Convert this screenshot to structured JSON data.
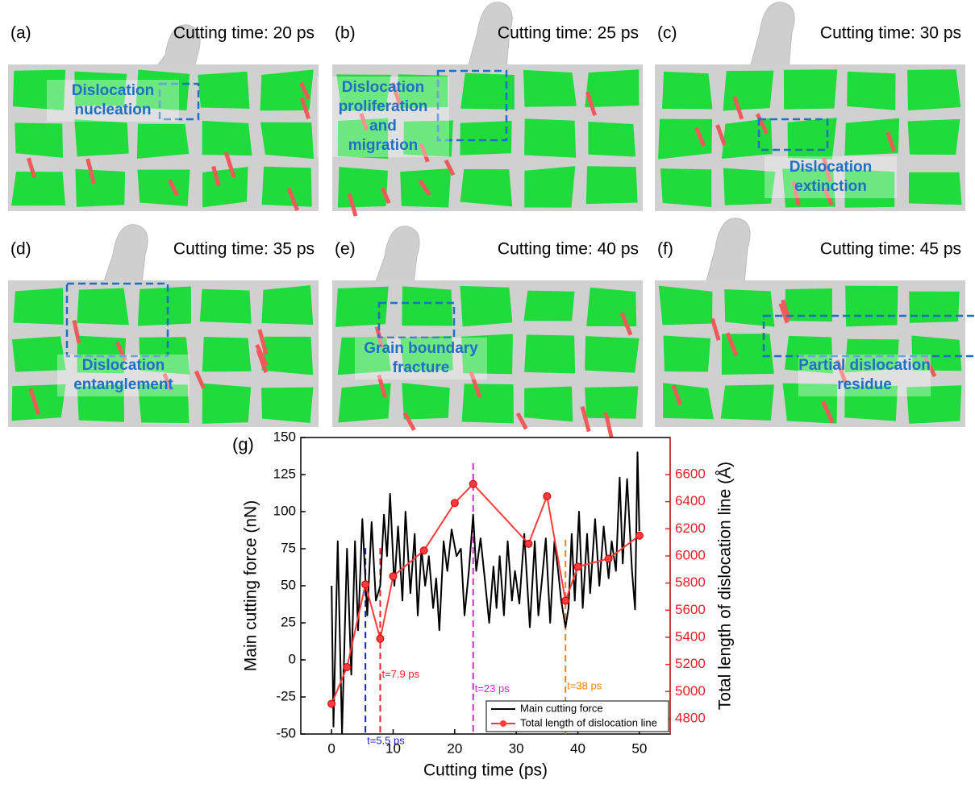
{
  "panels": [
    {
      "label": "(a)",
      "caption": "Cutting time: 20 ps",
      "annotation": [
        "Dislocation",
        "nucleation"
      ]
    },
    {
      "label": "(b)",
      "caption": "Cutting time: 25 ps",
      "annotation": [
        "Dislocation",
        "proliferation",
        "and",
        "migration"
      ]
    },
    {
      "label": "(c)",
      "caption": "Cutting time: 30 ps",
      "annotation": [
        "Dislocation",
        "extinction"
      ]
    },
    {
      "label": "(d)",
      "caption": "Cutting time: 35 ps",
      "annotation": [
        "Dislocation",
        "entanglement"
      ]
    },
    {
      "label": "(e)",
      "caption": "Cutting time: 40 ps",
      "annotation": [
        "Grain boundary",
        "fracture"
      ]
    },
    {
      "label": "(f)",
      "caption": "Cutting time: 45 ps",
      "annotation": [
        "Partial dislocation",
        "residue"
      ]
    }
  ],
  "chart_data": {
    "type": "line",
    "panel_label": "(g)",
    "x_label": "Cutting time (ps)",
    "y_label": "Main cutting force (nN)",
    "y2_label": "Total length of dislocation line (Å)",
    "xlim": [
      -5,
      55
    ],
    "xticks": [
      0,
      10,
      20,
      30,
      40,
      50
    ],
    "ylim": [
      -50,
      150
    ],
    "yticks": [
      -50,
      -25,
      0,
      25,
      50,
      75,
      100,
      125,
      150
    ],
    "y2lim": [
      4687,
      6873
    ],
    "y2ticks": [
      4800,
      5000,
      5200,
      5400,
      5600,
      5800,
      6000,
      6200,
      6400,
      6600
    ],
    "legend": "lower right",
    "series": [
      {
        "name": "Main cutting force",
        "color": "#000000",
        "x": [
          0,
          0.3,
          1,
          1.7,
          2.5,
          3.2,
          3.8,
          4.3,
          5,
          5.8,
          6.5,
          7.2,
          7.9,
          8.5,
          9,
          9.5,
          10.2,
          10.8,
          11.5,
          12,
          12.8,
          13.5,
          14,
          14.6,
          15.2,
          15.8,
          16.5,
          17,
          17.5,
          18.2,
          18.8,
          19.5,
          20.3,
          21,
          21.6,
          22.3,
          23,
          23.5,
          24.2,
          25,
          25.6,
          26.3,
          26.8,
          27.3,
          28,
          28.6,
          29.3,
          29.8,
          30.5,
          31.3,
          32.2,
          33,
          33.6,
          34.2,
          34.8,
          35.5,
          36.2,
          36.8,
          37.3,
          38,
          38.5,
          39,
          39.5,
          40.2,
          40.8,
          41.5,
          42,
          42.8,
          43.5,
          44.2,
          45,
          45.5,
          46.2,
          46.8,
          47.3,
          48,
          48.8,
          49.3,
          49.7,
          50
        ],
        "values": [
          50,
          -45,
          80,
          -50,
          75,
          -10,
          80,
          20,
          95,
          30,
          93,
          40,
          50,
          98,
          70,
          112,
          50,
          90,
          40,
          100,
          45,
          85,
          30,
          75,
          50,
          70,
          35,
          55,
          20,
          80,
          60,
          88,
          70,
          75,
          30,
          60,
          98,
          60,
          82,
          50,
          25,
          63,
          35,
          70,
          30,
          80,
          40,
          60,
          38,
          85,
          22,
          80,
          30,
          55,
          82,
          25,
          80,
          60,
          40,
          22,
          35,
          85,
          40,
          100,
          35,
          85,
          45,
          95,
          50,
          90,
          55,
          80,
          60,
          123,
          65,
          122,
          60,
          34,
          140,
          87
        ]
      },
      {
        "name": "Total length of dislocation line",
        "color": "#ff3b3b",
        "axis": "y2",
        "marker": "circle",
        "x": [
          0,
          2.5,
          5.5,
          7.9,
          10,
          15,
          20,
          23,
          32,
          35,
          38,
          40,
          45,
          50
        ],
        "values": [
          4910,
          5180,
          5790,
          5390,
          5850,
          6040,
          6390,
          6530,
          6090,
          6440,
          5670,
          5920,
          5980,
          6150
        ]
      }
    ],
    "annotations": [
      {
        "x": 5.5,
        "y": 75.5,
        "label": "t=5.5 ps",
        "label_y": -55,
        "color": "#1a1adb"
      },
      {
        "x": 7.9,
        "y": 75.5,
        "label": "t=7.9 ps",
        "label_y": -10,
        "color": "#e8202a"
      },
      {
        "x": 23,
        "y": 132.6,
        "label": "t=23 ps",
        "label_y": -20,
        "color": "#e020e0"
      },
      {
        "x": 38,
        "y": 81,
        "label": "t=38 ps",
        "label_y": -18,
        "color": "#ff8000"
      }
    ]
  }
}
